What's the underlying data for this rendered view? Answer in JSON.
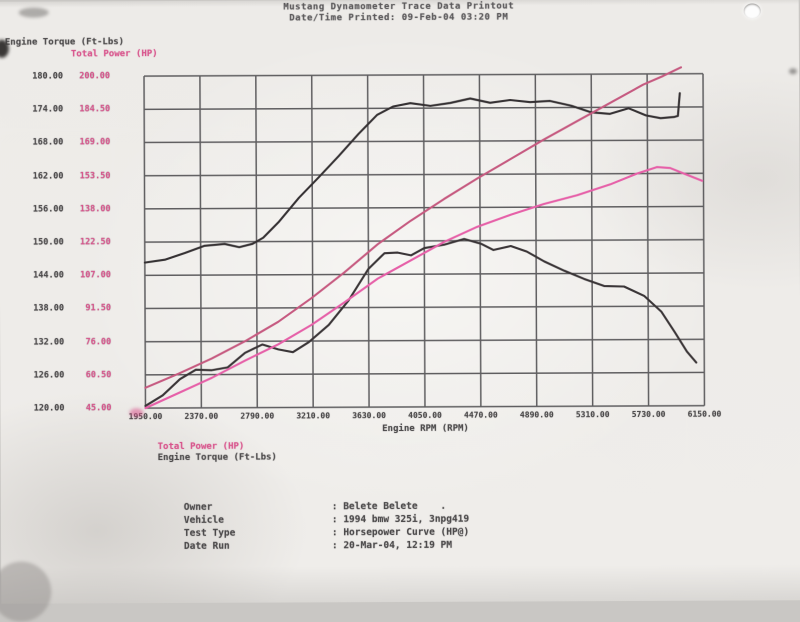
{
  "header": {
    "line1": "Mustang Dynamometer Trace Data Printout",
    "line2": "Date/Time Printed: 09-Feb-04 03:20 PM"
  },
  "axis_titles": {
    "torque_axis": "Engine Torque (Ft-Lbs)",
    "power_axis": "Total Power (HP)",
    "x_axis": "Engine RPM (RPM)"
  },
  "legend_below": {
    "power": "Total Power (HP)",
    "torque": "Engine Torque (Ft-Lbs)"
  },
  "info": {
    "rows": [
      {
        "label": "Owner",
        "value": ": Belete Belete    ."
      },
      {
        "label": "Vehicle",
        "value": ": 1994 bmw 325i, 3npg419"
      },
      {
        "label": "Test Type",
        "value": ": Horsepower Curve (HP@)"
      },
      {
        "label": "Date Run",
        "value": ": 20-Mar-04, 12:19 PM"
      }
    ]
  },
  "colors": {
    "torque_run1": "#353133",
    "power_run1": "#c65a80",
    "torque_run2": "#3a3537",
    "power_run2": "#e660a8",
    "grid": "#5f5e60",
    "pink_text": "#d8548c"
  },
  "chart_data": {
    "type": "line",
    "title": "",
    "xlabel": "Engine RPM (RPM)",
    "grid": true,
    "legend_position": "top-left and below chart",
    "x_axis": {
      "min": 1950,
      "max": 6150,
      "ticks": [
        "1950.00",
        "2370.00",
        "2790.00",
        "3210.00",
        "3630.00",
        "4050.00",
        "4470.00",
        "4890.00",
        "5310.00",
        "5730.00",
        "6150.00"
      ]
    },
    "y_axis_torque": {
      "label": "Engine Torque (Ft-Lbs)",
      "min": 120,
      "max": 180,
      "ticks": [
        "180.00",
        "174.00",
        "168.00",
        "162.00",
        "156.00",
        "150.00",
        "144.00",
        "138.00",
        "132.00",
        "126.00",
        "120.00"
      ]
    },
    "y_axis_power": {
      "label": "Total Power (HP)",
      "min": 45,
      "max": 200,
      "ticks": [
        "200.00",
        "184.50",
        "169.00",
        "153.50",
        "138.00",
        "122.50",
        "107.00",
        "91.50",
        "76.00",
        "60.50",
        "45.00"
      ]
    },
    "series": [
      {
        "name": "Engine Torque run 1 (Ft-Lbs)",
        "axis": "torque",
        "color_key": "torque_run1",
        "points": [
          [
            1950,
            146.3
          ],
          [
            2100,
            146.8
          ],
          [
            2250,
            148.0
          ],
          [
            2400,
            149.3
          ],
          [
            2550,
            149.6
          ],
          [
            2660,
            149.0
          ],
          [
            2760,
            149.6
          ],
          [
            2840,
            150.7
          ],
          [
            2960,
            153.6
          ],
          [
            3110,
            157.9
          ],
          [
            3260,
            161.6
          ],
          [
            3410,
            165.4
          ],
          [
            3560,
            169.4
          ],
          [
            3700,
            172.8
          ],
          [
            3820,
            174.3
          ],
          [
            3950,
            174.9
          ],
          [
            4100,
            174.4
          ],
          [
            4250,
            174.9
          ],
          [
            4400,
            175.7
          ],
          [
            4550,
            174.9
          ],
          [
            4700,
            175.4
          ],
          [
            4850,
            175.0
          ],
          [
            5000,
            175.2
          ],
          [
            5160,
            174.3
          ],
          [
            5310,
            173.1
          ],
          [
            5450,
            172.8
          ],
          [
            5590,
            173.8
          ],
          [
            5720,
            172.5
          ],
          [
            5830,
            172.0
          ],
          [
            5930,
            172.2
          ],
          [
            5960,
            172.4
          ],
          [
            5975,
            176.5
          ]
        ]
      },
      {
        "name": "Total Power run 1 (HP)",
        "axis": "power",
        "color_key": "power_run1",
        "points": [
          [
            1950,
            54.5
          ],
          [
            2200,
            61.0
          ],
          [
            2450,
            68.0
          ],
          [
            2700,
            76.0
          ],
          [
            2950,
            85.0
          ],
          [
            3200,
            96.0
          ],
          [
            3450,
            108.0
          ],
          [
            3700,
            121.0
          ],
          [
            3950,
            132.0
          ],
          [
            4200,
            142.0
          ],
          [
            4450,
            151.5
          ],
          [
            4700,
            160.5
          ],
          [
            4950,
            169.5
          ],
          [
            5200,
            178.0
          ],
          [
            5450,
            186.5
          ],
          [
            5700,
            195.0
          ],
          [
            5850,
            199.0
          ],
          [
            5985,
            203.0
          ]
        ]
      },
      {
        "name": "Engine Torque run 2 (Ft-Lbs)",
        "axis": "torque",
        "color_key": "torque_run2",
        "points": [
          [
            1950,
            120.4
          ],
          [
            2080,
            122.3
          ],
          [
            2210,
            125.2
          ],
          [
            2330,
            126.9
          ],
          [
            2450,
            126.8
          ],
          [
            2570,
            127.3
          ],
          [
            2700,
            129.9
          ],
          [
            2830,
            131.4
          ],
          [
            2950,
            130.5
          ],
          [
            3060,
            130.0
          ],
          [
            3180,
            131.8
          ],
          [
            3330,
            134.9
          ],
          [
            3480,
            139.3
          ],
          [
            3630,
            145.0
          ],
          [
            3750,
            147.8
          ],
          [
            3850,
            147.9
          ],
          [
            3950,
            147.4
          ],
          [
            4050,
            148.7
          ],
          [
            4200,
            149.3
          ],
          [
            4350,
            150.3
          ],
          [
            4480,
            149.4
          ],
          [
            4570,
            148.3
          ],
          [
            4700,
            149.0
          ],
          [
            4820,
            148.0
          ],
          [
            4950,
            146.2
          ],
          [
            5100,
            144.5
          ],
          [
            5250,
            143.0
          ],
          [
            5400,
            141.7
          ],
          [
            5550,
            141.6
          ],
          [
            5700,
            139.9
          ],
          [
            5830,
            137.0
          ],
          [
            5930,
            133.3
          ],
          [
            6020,
            129.8
          ],
          [
            6090,
            127.8
          ]
        ]
      },
      {
        "name": "Total Power run 2 (HP)",
        "axis": "power",
        "color_key": "power_run2",
        "points": [
          [
            1950,
            45.0
          ],
          [
            2200,
            52.0
          ],
          [
            2450,
            59.0
          ],
          [
            2700,
            67.0
          ],
          [
            2950,
            74.5
          ],
          [
            3200,
            83.5
          ],
          [
            3450,
            94.0
          ],
          [
            3700,
            105.0
          ],
          [
            3950,
            113.5
          ],
          [
            4200,
            122.0
          ],
          [
            4450,
            129.0
          ],
          [
            4700,
            134.5
          ],
          [
            4950,
            139.5
          ],
          [
            5200,
            143.5
          ],
          [
            5450,
            148.5
          ],
          [
            5650,
            153.5
          ],
          [
            5800,
            156.5
          ],
          [
            5900,
            156.0
          ],
          [
            6000,
            153.5
          ],
          [
            6140,
            150.0
          ]
        ]
      }
    ]
  }
}
